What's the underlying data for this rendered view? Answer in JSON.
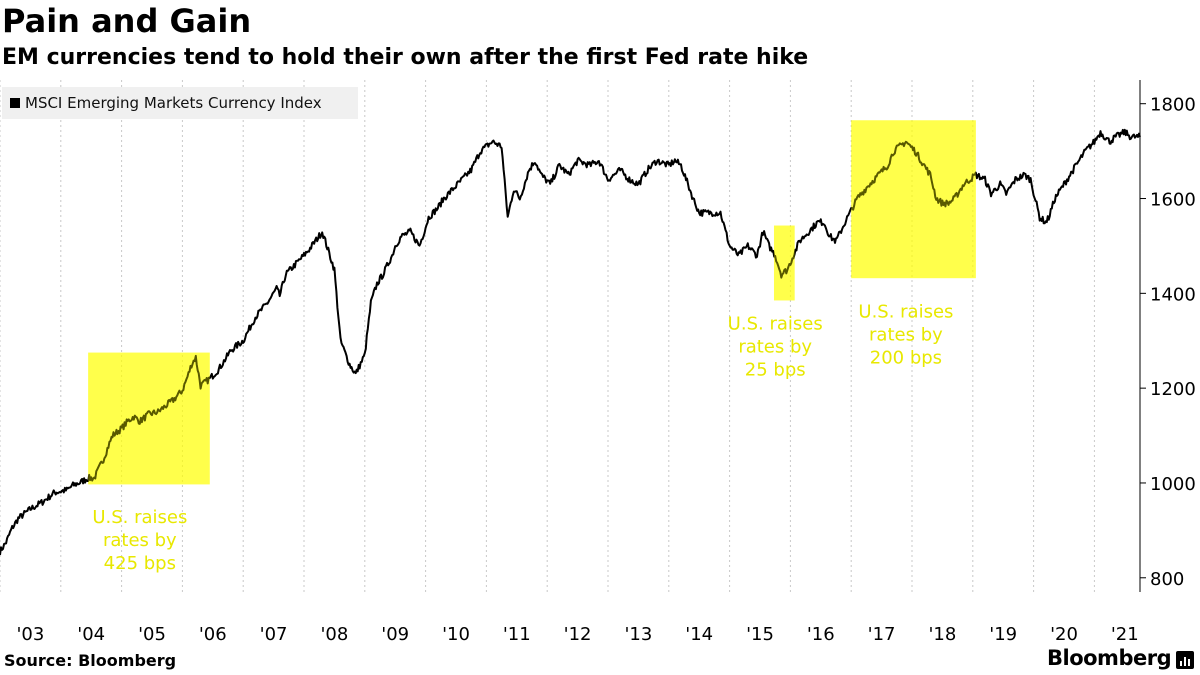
{
  "chart_data": {
    "type": "line",
    "title": "Pain and Gain",
    "subtitle": "EM currencies tend to hold their own after the first Fed rate hike",
    "source": "Source: Bloomberg",
    "brand": "Bloomberg",
    "legend": {
      "label": "MSCI Emerging Markets Currency Index",
      "placement": "top-left"
    },
    "xlim": [
      2003.0,
      2021.75
    ],
    "ylim": [
      770,
      1850
    ],
    "y_ticks": [
      800,
      1000,
      1200,
      1400,
      1600,
      1800
    ],
    "y_axis_side": "right",
    "x_ticks": [
      {
        "label": "'03",
        "value": 2003.5
      },
      {
        "label": "'04",
        "value": 2004.5
      },
      {
        "label": "'05",
        "value": 2005.5
      },
      {
        "label": "'06",
        "value": 2006.5
      },
      {
        "label": "'07",
        "value": 2007.5
      },
      {
        "label": "'08",
        "value": 2008.5
      },
      {
        "label": "'09",
        "value": 2009.5
      },
      {
        "label": "'10",
        "value": 2010.5
      },
      {
        "label": "'11",
        "value": 2011.5
      },
      {
        "label": "'12",
        "value": 2012.5
      },
      {
        "label": "'13",
        "value": 2013.5
      },
      {
        "label": "'14",
        "value": 2014.5
      },
      {
        "label": "'15",
        "value": 2015.5
      },
      {
        "label": "'16",
        "value": 2016.5
      },
      {
        "label": "'17",
        "value": 2017.5
      },
      {
        "label": "'18",
        "value": 2018.5
      },
      {
        "label": "'19",
        "value": 2019.5
      },
      {
        "label": "'20",
        "value": 2020.5
      },
      {
        "label": "'21",
        "value": 2021.5
      }
    ],
    "grid": {
      "vertical": true,
      "horizontal": false
    },
    "series": [
      {
        "color": "#000000",
        "x": [
          2003.0,
          2003.1,
          2003.2,
          2003.3,
          2003.5,
          2003.7,
          2003.9,
          2004.1,
          2004.2,
          2004.3,
          2004.45,
          2004.55,
          2004.7,
          2004.85,
          2005.0,
          2005.1,
          2005.2,
          2005.3,
          2005.45,
          2005.6,
          2005.7,
          2005.85,
          2006.0,
          2006.1,
          2006.15,
          2006.22,
          2006.3,
          2006.45,
          2006.6,
          2006.8,
          2007.0,
          2007.2,
          2007.4,
          2007.55,
          2007.6,
          2007.7,
          2007.85,
          2008.0,
          2008.1,
          2008.3,
          2008.5,
          2008.6,
          2008.75,
          2008.85,
          2009.0,
          2009.1,
          2009.2,
          2009.3,
          2009.45,
          2009.5,
          2009.6,
          2009.75,
          2009.9,
          2010.05,
          2010.2,
          2010.3,
          2010.45,
          2010.6,
          2010.75,
          2010.9,
          2011.1,
          2011.25,
          2011.35,
          2011.45,
          2011.55,
          2011.7,
          2011.8,
          2011.9,
          2012.05,
          2012.2,
          2012.35,
          2012.5,
          2012.7,
          2012.85,
          2013.0,
          2013.2,
          2013.35,
          2013.5,
          2013.65,
          2013.8,
          2014.0,
          2014.1,
          2014.2,
          2014.4,
          2014.5,
          2014.7,
          2014.85,
          2015.0,
          2015.15,
          2015.3,
          2015.45,
          2015.55,
          2015.65,
          2015.75,
          2015.85,
          2015.95,
          2016.05,
          2016.15,
          2016.3,
          2016.45,
          2016.55,
          2016.65,
          2016.75,
          2016.9,
          2017.1,
          2017.3,
          2017.45,
          2017.6,
          2017.7,
          2017.8,
          2017.9,
          2018.05,
          2018.15,
          2018.3,
          2018.4,
          2018.5,
          2018.6,
          2018.7,
          2018.85,
          2018.95,
          2019.05,
          2019.2,
          2019.3,
          2019.45,
          2019.55,
          2019.7,
          2019.85,
          2019.95,
          2020.1,
          2020.2,
          2020.25,
          2020.35,
          2020.5,
          2020.7,
          2020.85,
          2021.0,
          2021.1,
          2021.25,
          2021.35,
          2021.5,
          2021.6,
          2021.75
        ],
        "values": [
          855,
          875,
          905,
          925,
          945,
          960,
          980,
          985,
          995,
          1000,
          1010,
          1010,
          1050,
          1100,
          1115,
          1130,
          1140,
          1130,
          1145,
          1150,
          1160,
          1175,
          1195,
          1230,
          1250,
          1265,
          1205,
          1220,
          1240,
          1280,
          1300,
          1350,
          1380,
          1410,
          1395,
          1440,
          1460,
          1480,
          1495,
          1530,
          1450,
          1300,
          1250,
          1230,
          1270,
          1380,
          1420,
          1440,
          1480,
          1500,
          1520,
          1530,
          1500,
          1560,
          1580,
          1600,
          1620,
          1640,
          1660,
          1700,
          1720,
          1710,
          1560,
          1620,
          1600,
          1660,
          1680,
          1650,
          1630,
          1670,
          1650,
          1680,
          1670,
          1680,
          1640,
          1660,
          1640,
          1630,
          1660,
          1680,
          1670,
          1680,
          1670,
          1600,
          1570,
          1570,
          1570,
          1500,
          1480,
          1500,
          1480,
          1530,
          1500,
          1480,
          1440,
          1450,
          1480,
          1510,
          1530,
          1550,
          1550,
          1520,
          1510,
          1550,
          1600,
          1630,
          1650,
          1670,
          1700,
          1710,
          1720,
          1700,
          1680,
          1650,
          1600,
          1590,
          1590,
          1600,
          1630,
          1640,
          1650,
          1640,
          1610,
          1630,
          1610,
          1640,
          1650,
          1640,
          1560,
          1550,
          1560,
          1600,
          1630,
          1670,
          1700,
          1720,
          1740,
          1720,
          1730,
          1740,
          1730,
          1730
        ]
      }
    ],
    "annotations": [
      {
        "x0": 2004.45,
        "x1": 2006.45,
        "y0": 997,
        "y1": 1275,
        "color": "#ffff00",
        "text_lines": [
          "U.S. raises",
          "rates by",
          "425 bps"
        ],
        "text_x": 2005.3,
        "text_top_value": 962
      },
      {
        "x0": 2015.73,
        "x1": 2016.07,
        "y0": 1385,
        "y1": 1543,
        "color": "#ffff00",
        "text_lines": [
          "U.S. raises",
          "rates by",
          "25 bps"
        ],
        "text_x": 2015.75,
        "text_top_value": 1370
      },
      {
        "x0": 2017.0,
        "x1": 2019.05,
        "y0": 1432,
        "y1": 1765,
        "color": "#ffff00",
        "text_lines": [
          "U.S. raises",
          "rates by",
          "200 bps"
        ],
        "text_x": 2017.9,
        "text_top_value": 1395
      }
    ]
  }
}
